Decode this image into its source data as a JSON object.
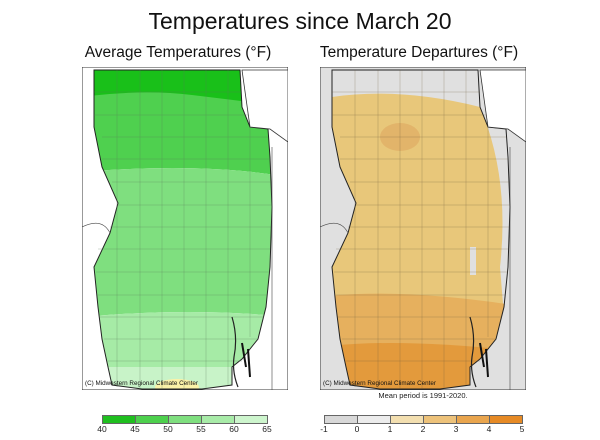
{
  "title": "Temperatures since March 20",
  "panels": {
    "left": {
      "title": "Average Temperatures (°F)",
      "copyright": "(C) Midwestern Regional Climate Center",
      "legend": {
        "ticks": [
          "40",
          "45",
          "50",
          "55",
          "60",
          "65"
        ],
        "colors": [
          "#1fbf1f",
          "#4dd04d",
          "#7fdf7f",
          "#a8eba8",
          "#cdf5cd",
          "#fbf2a8"
        ]
      }
    },
    "right": {
      "title": "Temperature Departures (°F)",
      "copyright": "(C) Midwestern Regional Climate Center",
      "note": "Mean period is 1991-2020.",
      "legend": {
        "ticks": [
          "-1",
          "0",
          "1",
          "2",
          "3",
          "4",
          "5"
        ],
        "colors": [
          "#d8d8d8",
          "#ececec",
          "#f3dfb0",
          "#edc27a",
          "#e9a54e",
          "#e68a25"
        ]
      }
    }
  },
  "colors": {
    "green_dark": "#19c019",
    "green_mid": "#5fd65f",
    "green_light": "#9ce89c",
    "green_pale": "#c8f3c8",
    "yellow": "#fbf2a8",
    "gray": "#e0e0e0",
    "tan": "#e8c77a",
    "orange": "#e39a3c",
    "lake": "#ffffff"
  }
}
